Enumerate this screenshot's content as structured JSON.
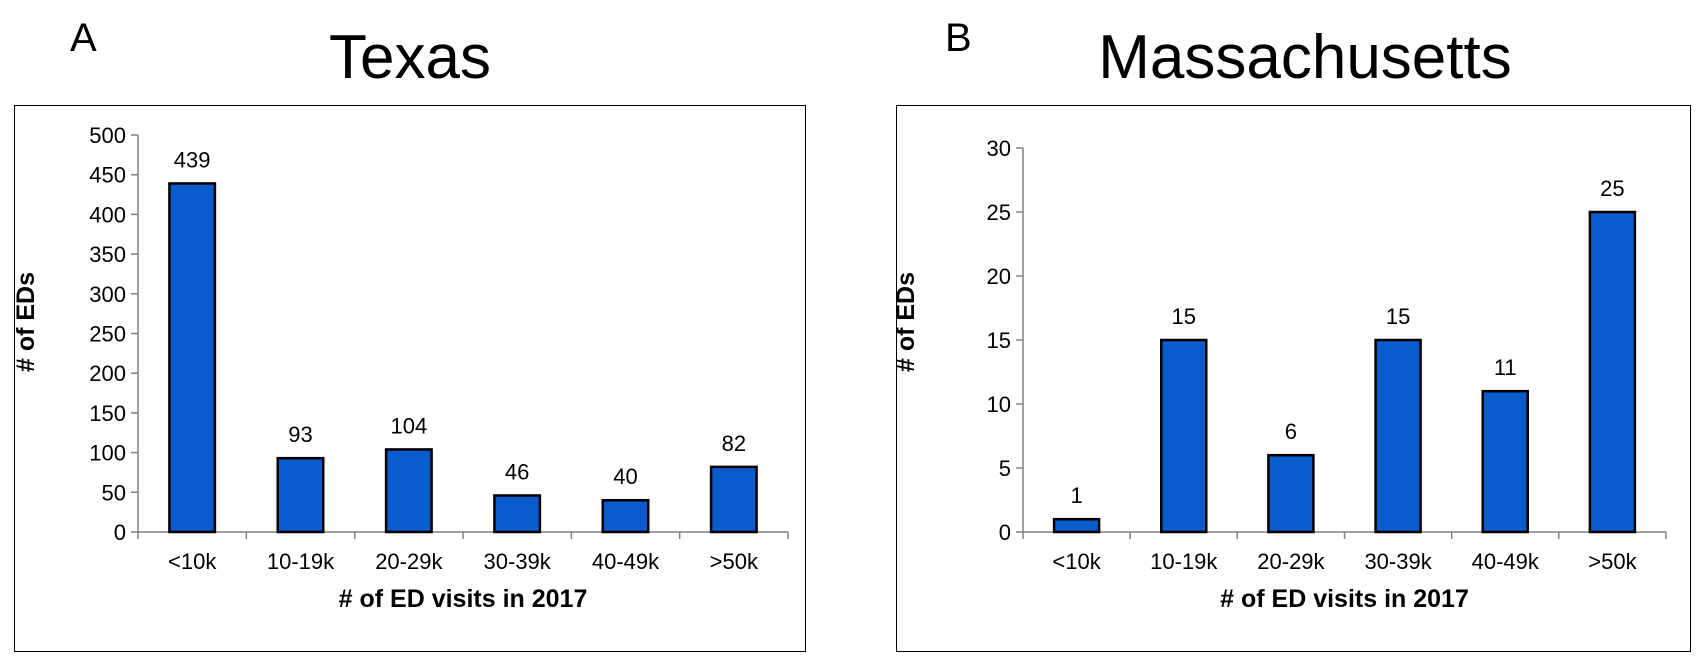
{
  "colors": {
    "bar": "#0a5ccc",
    "axis": "#808080"
  },
  "chart_data": [
    {
      "type": "bar",
      "panel_label": "A",
      "title": "Texas",
      "xlabel": "# of ED visits in 2017",
      "ylabel": "# of EDs",
      "categories": [
        "<10k",
        "10-19k",
        "20-29k",
        "30-39k",
        "40-49k",
        ">50k"
      ],
      "values": [
        439,
        93,
        104,
        46,
        40,
        82
      ],
      "data_labels": [
        "439",
        "93",
        "104",
        "46",
        "40",
        "82"
      ],
      "ylim": [
        0,
        500
      ],
      "yticks": [
        0,
        50,
        100,
        150,
        200,
        250,
        300,
        350,
        400,
        450,
        500
      ],
      "grid": false,
      "legend": "none"
    },
    {
      "type": "bar",
      "panel_label": "B",
      "title": "Massachusetts",
      "xlabel": "# of ED visits in 2017",
      "ylabel": "# of EDs",
      "categories": [
        "<10k",
        "10-19k",
        "20-29k",
        "30-39k",
        "40-49k",
        ">50k"
      ],
      "values": [
        1,
        15,
        6,
        15,
        11,
        25
      ],
      "data_labels": [
        "1",
        "15",
        "6",
        "15",
        "11",
        "25"
      ],
      "ylim": [
        0,
        30
      ],
      "yticks": [
        0,
        5,
        10,
        15,
        20,
        25,
        30
      ],
      "grid": false,
      "legend": "none"
    }
  ]
}
